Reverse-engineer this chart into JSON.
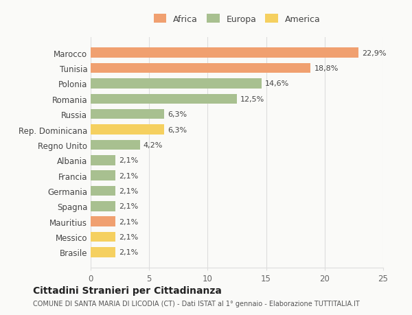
{
  "categories": [
    "Marocco",
    "Tunisia",
    "Polonia",
    "Romania",
    "Russia",
    "Rep. Dominicana",
    "Regno Unito",
    "Albania",
    "Francia",
    "Germania",
    "Spagna",
    "Mauritius",
    "Messico",
    "Brasile"
  ],
  "values": [
    22.9,
    18.8,
    14.6,
    12.5,
    6.3,
    6.3,
    4.2,
    2.1,
    2.1,
    2.1,
    2.1,
    2.1,
    2.1,
    2.1
  ],
  "colors": [
    "#F0A070",
    "#F0A070",
    "#A8C090",
    "#A8C090",
    "#A8C090",
    "#F5D060",
    "#A8C090",
    "#A8C090",
    "#A8C090",
    "#A8C090",
    "#A8C090",
    "#F0A070",
    "#F5D060",
    "#F5D060"
  ],
  "labels": [
    "22,9%",
    "18,8%",
    "14,6%",
    "12,5%",
    "6,3%",
    "6,3%",
    "4,2%",
    "2,1%",
    "2,1%",
    "2,1%",
    "2,1%",
    "2,1%",
    "2,1%",
    "2,1%"
  ],
  "xlim": [
    0,
    25
  ],
  "xticks": [
    0,
    5,
    10,
    15,
    20,
    25
  ],
  "legend_entries": [
    {
      "label": "Africa",
      "color": "#F0A070"
    },
    {
      "label": "Europa",
      "color": "#A8C090"
    },
    {
      "label": "America",
      "color": "#F5D060"
    }
  ],
  "title": "Cittadini Stranieri per Cittadinanza",
  "subtitle": "COMUNE DI SANTA MARIA DI LICODIA (CT) - Dati ISTAT al 1° gennaio - Elaborazione TUTTITALIA.IT",
  "background_color": "#FAFAF8",
  "grid_color": "#DDDDDD"
}
